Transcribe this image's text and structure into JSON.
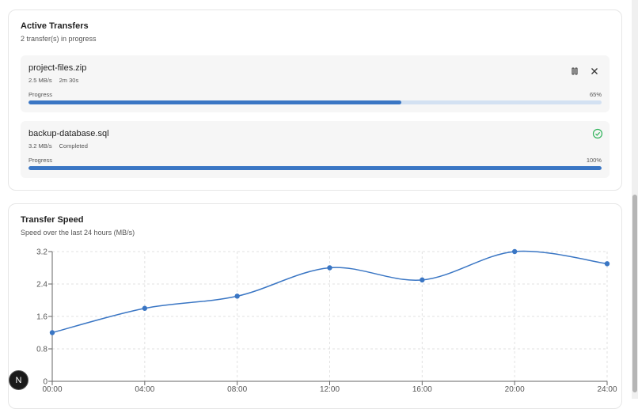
{
  "transfers": {
    "title": "Active Transfers",
    "subtitle": "2 transfer(s) in progress",
    "items": [
      {
        "name": "project-files.zip",
        "speed": "2.5 MB/s",
        "status": "2m 30s",
        "progress_label": "Progress",
        "progress": {
          "value": 65,
          "label": "65%"
        }
      },
      {
        "name": "backup-database.sql",
        "speed": "3.2 MB/s",
        "status": "Completed",
        "progress_label": "Progress",
        "progress": {
          "value": 100,
          "label": "100%"
        }
      }
    ]
  },
  "chart_data": {
    "type": "line",
    "title": "Transfer Speed",
    "subtitle": "Speed over the last 24 hours (MB/s)",
    "categories": [
      "00:00",
      "04:00",
      "08:00",
      "12:00",
      "16:00",
      "20:00",
      "24:00"
    ],
    "values": [
      1.2,
      1.8,
      2.1,
      2.8,
      2.5,
      3.2,
      2.9
    ],
    "color": "#3a76c4",
    "ylim": [
      0,
      3.2
    ],
    "yticks": [
      0,
      0.8,
      1.6,
      2.4,
      3.2
    ],
    "grid": true
  },
  "dev_badge": "N"
}
